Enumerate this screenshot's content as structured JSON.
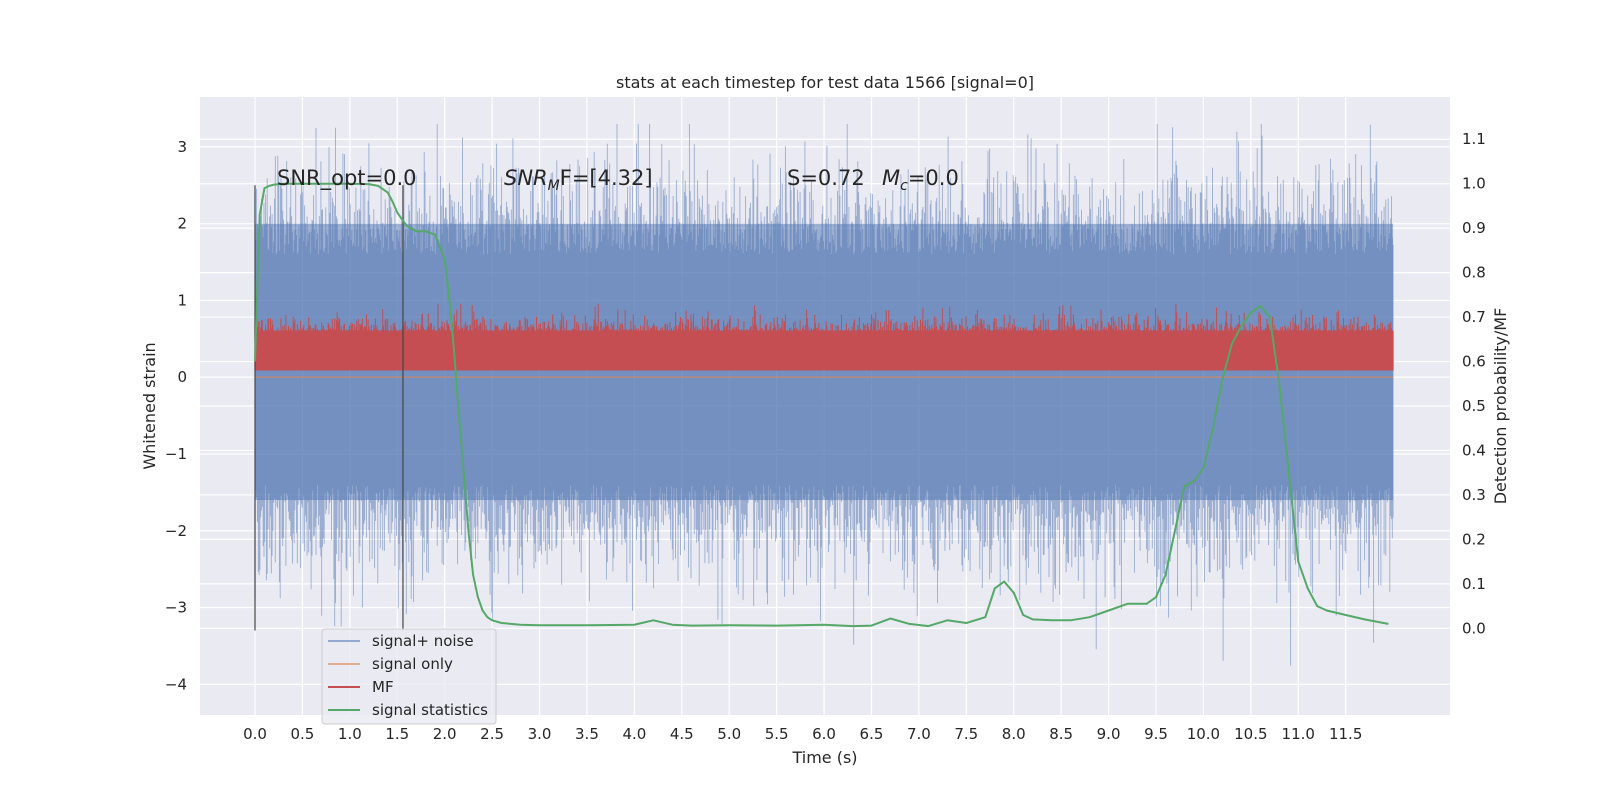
{
  "chart_data": {
    "type": "line",
    "title": "stats at each timestep for test data 1566 [signal=0]",
    "xlabel": "Time (s)",
    "ylabel_left": "Whitened strain",
    "ylabel_right": "Detection probability/MF",
    "x_range": [
      -0.58,
      12.6
    ],
    "y_left_range": [
      -4.4,
      3.65
    ],
    "y_right_range": [
      -0.195,
      1.195
    ],
    "x_ticks": [
      "0.0",
      "0.5",
      "1.0",
      "1.5",
      "2.0",
      "2.5",
      "3.0",
      "3.5",
      "4.0",
      "4.5",
      "5.0",
      "5.5",
      "6.0",
      "6.5",
      "7.0",
      "7.5",
      "8.0",
      "8.5",
      "9.0",
      "9.5",
      "10.0",
      "10.5",
      "11.0",
      "11.5"
    ],
    "y_left_ticks": [
      "3",
      "2",
      "1",
      "0",
      "−1",
      "−2",
      "−3",
      "−4"
    ],
    "y_right_ticks": [
      "1.1",
      "1.0",
      "0.9",
      "0.8",
      "0.7",
      "0.6",
      "0.5",
      "0.4",
      "0.3",
      "0.2",
      "0.1",
      "0.0"
    ],
    "grid": true,
    "legend_position": "bottom-left",
    "annotations": {
      "snr_opt": "SNR_opt=0.0",
      "snr_mf_base": "SNR",
      "snr_mf_sub": "M",
      "snr_mf_rest": "F=[4.32]",
      "s_stat": "S=0.72",
      "mc_base": "M",
      "mc_sub": "c",
      "mc_rest": "=0.0"
    },
    "vertical_markers": [
      0.0,
      1.56
    ],
    "series": [
      {
        "name": "signal+ noise",
        "color": "#4c72b0",
        "axis": "left",
        "style": "dense noise band",
        "x_range": [
          0.0,
          12.0
        ],
        "envelope_typical": [
          -1.6,
          2.0
        ],
        "envelope_extreme": [
          -3.9,
          3.3
        ]
      },
      {
        "name": "signal only",
        "color": "#dd8452",
        "axis": "left",
        "style": "flat line",
        "values_y": 0.0
      },
      {
        "name": "MF",
        "color": "#c44e52",
        "axis": "right",
        "style": "dense noise band",
        "x_range": [
          0.0,
          12.0
        ],
        "baseline": 0.58,
        "envelope_typical": [
          0.58,
          0.67
        ],
        "envelope_extreme": [
          0.58,
          0.73
        ]
      },
      {
        "name": "signal statistics",
        "color": "#55a868",
        "axis": "right",
        "x": [
          0.0,
          0.05,
          0.1,
          0.15,
          0.2,
          0.3,
          0.5,
          0.8,
          1.0,
          1.2,
          1.3,
          1.4,
          1.45,
          1.5,
          1.55,
          1.6,
          1.7,
          1.8,
          1.9,
          2.0,
          2.05,
          2.1,
          2.15,
          2.2,
          2.25,
          2.3,
          2.35,
          2.4,
          2.45,
          2.5,
          2.6,
          2.8,
          3.0,
          3.5,
          4.0,
          4.2,
          4.4,
          4.6,
          5.0,
          5.5,
          6.0,
          6.3,
          6.5,
          6.7,
          6.9,
          7.1,
          7.3,
          7.5,
          7.7,
          7.8,
          7.9,
          8.0,
          8.1,
          8.2,
          8.4,
          8.6,
          8.8,
          9.0,
          9.2,
          9.4,
          9.5,
          9.6,
          9.7,
          9.8,
          9.9,
          10.0,
          10.1,
          10.2,
          10.3,
          10.4,
          10.5,
          10.6,
          10.7,
          10.8,
          10.9,
          11.0,
          11.1,
          11.2,
          11.3,
          11.5,
          11.7,
          11.9,
          11.95
        ],
        "y": [
          0.6,
          0.93,
          0.99,
          0.995,
          0.998,
          1.0,
          1.0,
          1.0,
          1.0,
          0.999,
          0.995,
          0.98,
          0.96,
          0.935,
          0.92,
          0.905,
          0.893,
          0.893,
          0.885,
          0.83,
          0.74,
          0.62,
          0.48,
          0.35,
          0.22,
          0.12,
          0.07,
          0.04,
          0.025,
          0.018,
          0.012,
          0.008,
          0.007,
          0.007,
          0.008,
          0.018,
          0.008,
          0.006,
          0.007,
          0.006,
          0.008,
          0.005,
          0.006,
          0.022,
          0.01,
          0.005,
          0.018,
          0.012,
          0.025,
          0.09,
          0.105,
          0.08,
          0.03,
          0.02,
          0.018,
          0.018,
          0.025,
          0.04,
          0.055,
          0.055,
          0.07,
          0.12,
          0.22,
          0.32,
          0.33,
          0.36,
          0.45,
          0.56,
          0.64,
          0.68,
          0.71,
          0.725,
          0.7,
          0.55,
          0.35,
          0.15,
          0.09,
          0.05,
          0.04,
          0.03,
          0.02,
          0.012,
          0.01
        ]
      }
    ]
  }
}
